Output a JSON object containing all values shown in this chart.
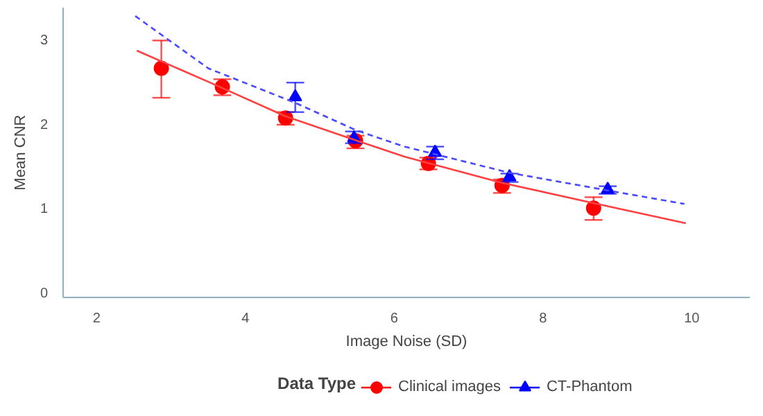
{
  "chart_data": {
    "type": "scatter",
    "xlabel": "Image Noise (SD)",
    "ylabel": "Mean CNR",
    "legend_title": "Data Type",
    "legend": "bottom",
    "grid": false,
    "xlim": [
      1.55,
      10.78
    ],
    "ylim": [
      -0.06,
      3.38
    ],
    "xticks": [
      2,
      4,
      6,
      8,
      10
    ],
    "yticks": [
      0,
      1,
      2,
      3
    ],
    "series": [
      {
        "name": "Clinical images",
        "color": "#ff0000",
        "marker": "circle",
        "x": [
          2.87,
          3.69,
          4.54,
          5.48,
          6.46,
          7.45,
          8.68
        ],
        "values": [
          2.66,
          2.44,
          2.07,
          1.8,
          1.53,
          1.27,
          1.0
        ],
        "errors": [
          [
            2.31,
            2.99
          ],
          [
            2.34,
            2.53
          ],
          [
            1.99,
            2.14
          ],
          [
            1.71,
            1.86
          ],
          [
            1.46,
            1.6
          ],
          [
            1.18,
            1.34
          ],
          [
            0.86,
            1.13
          ]
        ]
      },
      {
        "name": "CT-Phantom",
        "color": "#0000ff",
        "marker": "triangle",
        "x": [
          4.67,
          5.46,
          6.55,
          7.55,
          8.87
        ],
        "values": [
          2.32,
          1.83,
          1.66,
          1.37,
          1.22
        ],
        "errors": [
          [
            2.14,
            2.49
          ],
          [
            1.77,
            1.91
          ],
          [
            1.58,
            1.73
          ],
          [
            1.31,
            1.41
          ],
          [
            1.17,
            1.26
          ]
        ]
      },
      {
        "type": "line",
        "color": "#ff4040",
        "line_style": "solid",
        "marker": "none",
        "x": [
          2.54,
          3.5,
          4.54,
          5.5,
          6.14,
          7.45,
          8.68,
          9.92
        ],
        "values": [
          2.87,
          2.5,
          2.09,
          1.8,
          1.61,
          1.3,
          1.06,
          0.82
        ]
      },
      {
        "type": "line",
        "color": "#4a4aff",
        "line_style": "dashed",
        "marker": "none",
        "x": [
          2.52,
          3.5,
          4.67,
          5.5,
          6.14,
          7.55,
          8.87,
          9.9
        ],
        "values": [
          3.28,
          2.66,
          2.25,
          1.92,
          1.73,
          1.42,
          1.21,
          1.05
        ]
      }
    ]
  }
}
